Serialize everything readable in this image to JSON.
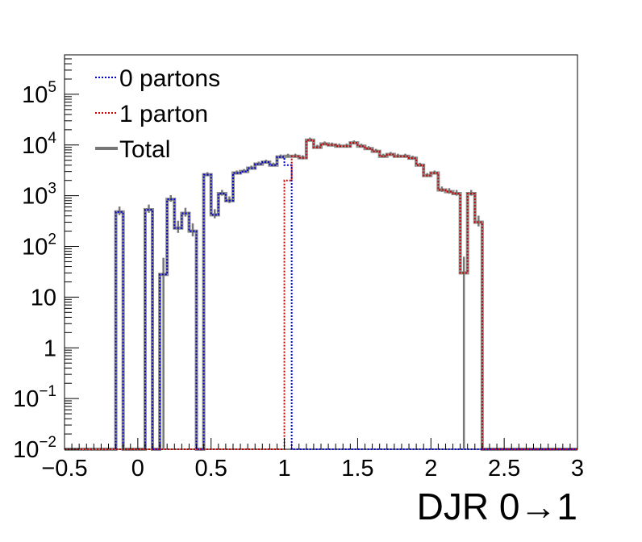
{
  "chart_data": {
    "type": "histogram",
    "xlabel": "DJR 0→1",
    "ylabel": "",
    "xlim": [
      -0.5,
      3.0
    ],
    "ylim": [
      0.01,
      600000
    ],
    "yscale": "log",
    "bin_width": 0.05,
    "bin_start": -0.5,
    "x_ticks": [
      "−0.5",
      "0",
      "0.5",
      "1",
      "1.5",
      "2",
      "2.5",
      "3"
    ],
    "x_tick_values": [
      -0.5,
      0,
      0.5,
      1,
      1.5,
      2,
      2.5,
      3
    ],
    "y_ticks": [
      {
        "value": 0.01,
        "base": "10",
        "exp": "−2"
      },
      {
        "value": 0.1,
        "base": "10",
        "exp": "−1"
      },
      {
        "value": 1,
        "base": "1",
        "exp": ""
      },
      {
        "value": 10,
        "base": "10",
        "exp": ""
      },
      {
        "value": 100,
        "base": "10",
        "exp": "2"
      },
      {
        "value": 1000,
        "base": "10",
        "exp": "3"
      },
      {
        "value": 10000,
        "base": "10",
        "exp": "4"
      },
      {
        "value": 100000,
        "base": "10",
        "exp": "5"
      }
    ],
    "legend_position": "top-left",
    "series": [
      {
        "name": "0 partons",
        "color": "#0000cc",
        "style": "dotted",
        "values": [
          0,
          0,
          0,
          0,
          0,
          0,
          0,
          480,
          0,
          0,
          0,
          530,
          0,
          28,
          850,
          230,
          450,
          200,
          0,
          2600,
          420,
          1100,
          800,
          2800,
          3000,
          3500,
          4200,
          4600,
          4000,
          5800,
          4000,
          0,
          0,
          0,
          0,
          0,
          0,
          0,
          0,
          0,
          0,
          0,
          0,
          0,
          0,
          0,
          0,
          0,
          0,
          0,
          0,
          0,
          0,
          0,
          0,
          0,
          0,
          0,
          0,
          0,
          0,
          0,
          0,
          0,
          0,
          0,
          0,
          0,
          0,
          0
        ]
      },
      {
        "name": "1 parton",
        "color": "#cc0000",
        "style": "dotted",
        "values": [
          0,
          0,
          0,
          0,
          0,
          0,
          0,
          0,
          0,
          0,
          0,
          0,
          0,
          0,
          0,
          0,
          0,
          0,
          0,
          0,
          0,
          0,
          0,
          0,
          0,
          0,
          0,
          0,
          0,
          0,
          2000,
          6000,
          5600,
          12500,
          9000,
          10500,
          10000,
          9500,
          9500,
          11000,
          9500,
          8500,
          7500,
          6000,
          6500,
          6000,
          6000,
          5500,
          4000,
          2500,
          2800,
          1300,
          1200,
          1100,
          30,
          1100,
          300,
          0,
          0,
          0,
          0,
          0,
          0,
          0,
          0,
          0,
          0,
          0,
          0,
          0
        ]
      },
      {
        "name": "Total",
        "color": "#777777",
        "style": "solid",
        "values": [
          0,
          0,
          0,
          0,
          0,
          0,
          0,
          480,
          0,
          0,
          0,
          530,
          0,
          28,
          850,
          230,
          450,
          200,
          0,
          2600,
          420,
          1100,
          800,
          2800,
          3000,
          3500,
          4200,
          4600,
          4000,
          5800,
          6000,
          6000,
          5600,
          12500,
          9000,
          10500,
          10000,
          9500,
          9500,
          11000,
          9500,
          8500,
          7500,
          6000,
          6500,
          6000,
          6000,
          5500,
          4000,
          2500,
          2800,
          1300,
          1200,
          1100,
          30,
          1100,
          300,
          0,
          0,
          0,
          0,
          0,
          0,
          0,
          0,
          0,
          0,
          0,
          0,
          0
        ]
      }
    ]
  }
}
